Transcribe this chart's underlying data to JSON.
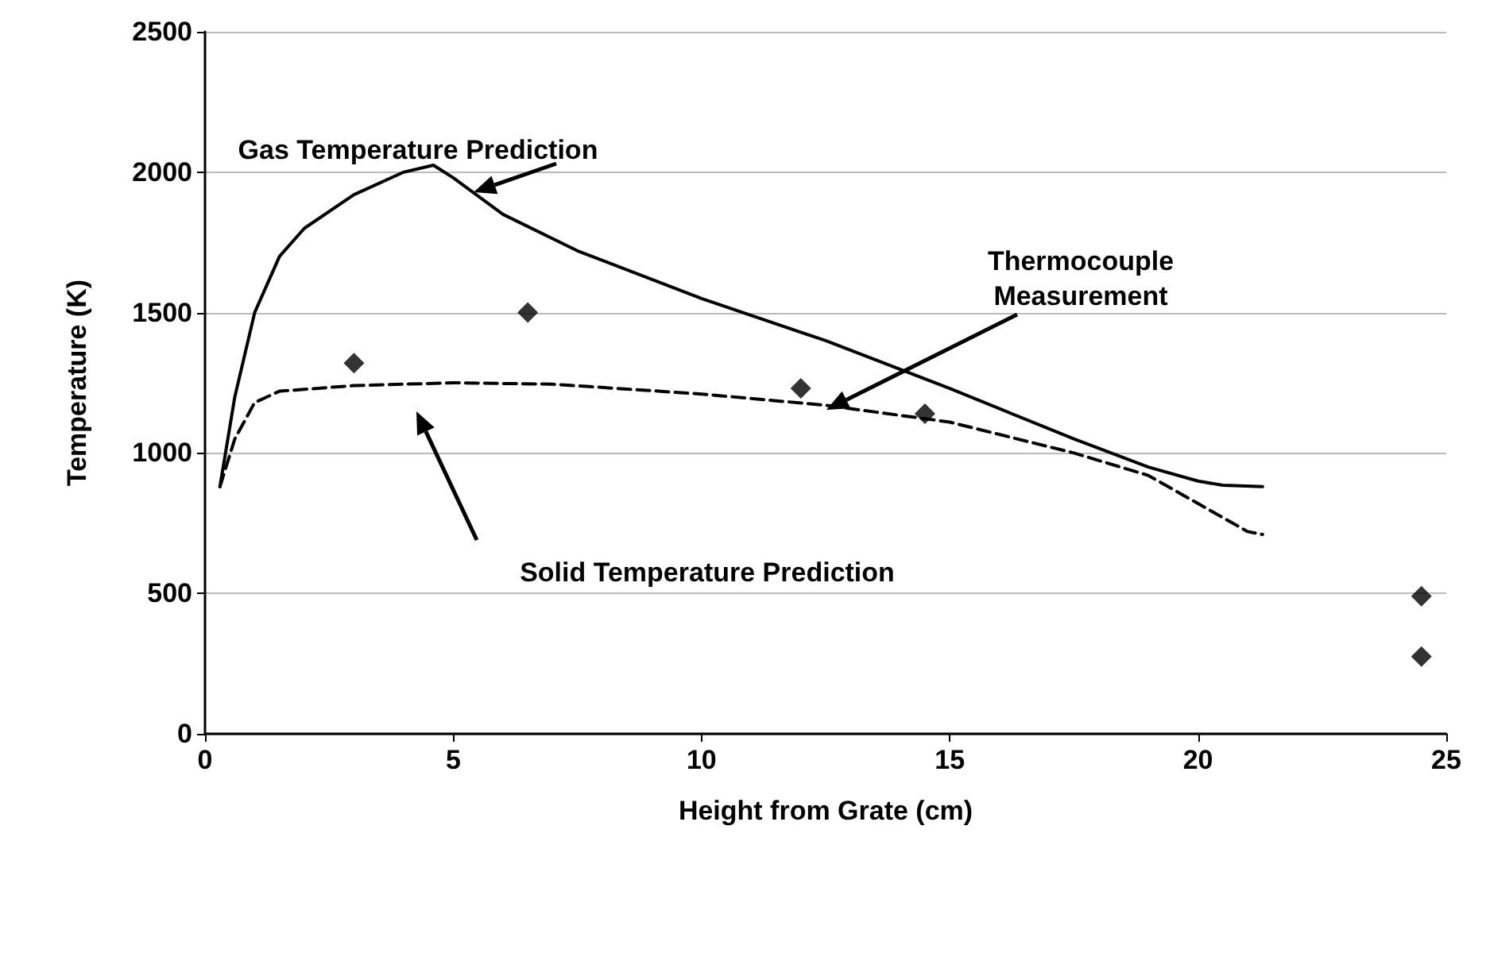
{
  "chart_data": {
    "type": "line",
    "xlabel": "Height from Grate (cm)",
    "ylabel": "Temperature (K)",
    "xlim": [
      0,
      25
    ],
    "xticks": [
      0,
      5,
      10,
      15,
      20,
      25
    ],
    "ylim": [
      0,
      2500
    ],
    "yticks": [
      0,
      500,
      1000,
      1500,
      2000,
      2500
    ],
    "grid": "y",
    "series": [
      {
        "color": "#000000",
        "line_style": "solid",
        "marker": "none",
        "x": [
          0.3,
          0.6,
          1,
          1.5,
          2,
          3,
          4,
          4.6,
          5,
          6,
          7.5,
          10,
          12.5,
          15,
          17.5,
          19,
          20,
          20.5,
          21.3
        ],
        "values": [
          880,
          1200,
          1500,
          1700,
          1800,
          1920,
          2000,
          2025,
          1980,
          1850,
          1720,
          1550,
          1400,
          1230,
          1050,
          950,
          900,
          885,
          880
        ]
      },
      {
        "color": "#000000",
        "line_style": "dashed",
        "marker": "none",
        "x": [
          0.3,
          0.6,
          1,
          1.5,
          3,
          5,
          7,
          10,
          12.5,
          15,
          17.5,
          19,
          20,
          21,
          21.3
        ],
        "values": [
          880,
          1050,
          1180,
          1220,
          1240,
          1250,
          1245,
          1210,
          1170,
          1110,
          1000,
          920,
          820,
          720,
          710
        ]
      },
      {
        "type": "scatter",
        "color": "#000000",
        "marker": "diamond",
        "x": [
          3,
          6.5,
          12,
          14.5,
          24.5,
          24.5
        ],
        "values": [
          1320,
          1500,
          1230,
          1140,
          490,
          275
        ]
      }
    ],
    "annotations": [
      "Gas Temperature Prediction",
      "Thermocouple\nMeasurement",
      "Solid Temperature Prediction"
    ]
  }
}
